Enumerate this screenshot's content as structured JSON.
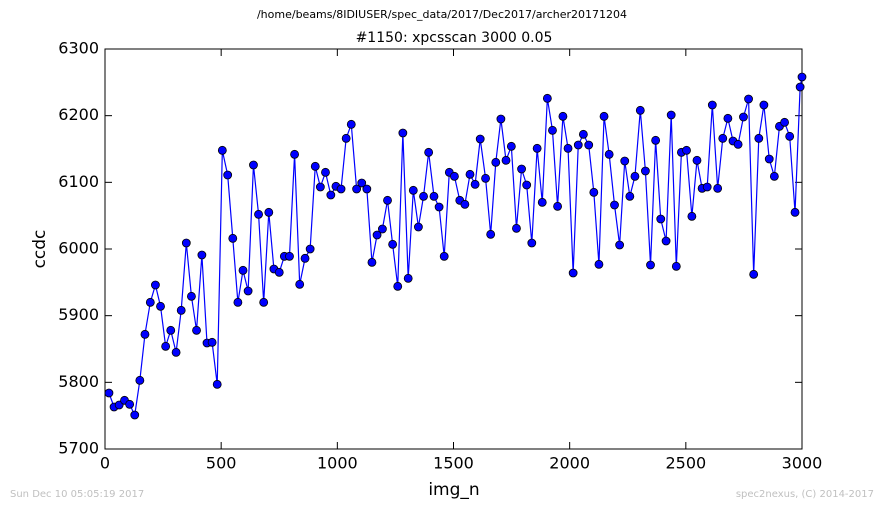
{
  "chart_data": {
    "type": "line",
    "suptitle": "/home/beams/8IDIUSER/spec_data/2017/Dec2017/archer20171204",
    "title": "#1150: xpcsscan 3000 0.05",
    "xlabel": "img_n",
    "ylabel": "ccdc",
    "footer_left": "Sun Dec 10 05:05:19 2017",
    "footer_right": "spec2nexus, (C) 2014-2017",
    "xlim": [
      0,
      3000
    ],
    "xticks": [
      0,
      500,
      1000,
      1500,
      2000,
      2500,
      3000
    ],
    "ylim": [
      5700,
      6300
    ],
    "yticks": [
      5700,
      5800,
      5900,
      6000,
      6100,
      6200,
      6300
    ],
    "grid": false,
    "x": [
      17,
      39,
      61,
      84,
      106,
      128,
      150,
      172,
      195,
      217,
      239,
      261,
      283,
      306,
      328,
      350,
      372,
      394,
      417,
      439,
      461,
      483,
      505,
      528,
      550,
      572,
      594,
      616,
      639,
      661,
      683,
      705,
      727,
      750,
      772,
      794,
      816,
      838,
      861,
      883,
      905,
      927,
      949,
      972,
      994,
      1016,
      1038,
      1060,
      1083,
      1105,
      1127,
      1149,
      1171,
      1194,
      1216,
      1238,
      1260,
      1282,
      1305,
      1327,
      1349,
      1371,
      1393,
      1416,
      1438,
      1460,
      1482,
      1504,
      1527,
      1549,
      1571,
      1593,
      1615,
      1638,
      1660,
      1682,
      1704,
      1726,
      1749,
      1771,
      1793,
      1815,
      1837,
      1860,
      1882,
      1904,
      1926,
      1948,
      1971,
      1993,
      2015,
      2037,
      2059,
      2082,
      2104,
      2126,
      2148,
      2170,
      2193,
      2215,
      2237,
      2259,
      2281,
      2304,
      2326,
      2348,
      2370,
      2392,
      2415,
      2437,
      2459,
      2481,
      2503,
      2526,
      2548,
      2570,
      2592,
      2614,
      2637,
      2659,
      2681,
      2703,
      2725,
      2748,
      2770,
      2792,
      2814,
      2836,
      2859,
      2881,
      2903,
      2925,
      2947,
      2970,
      2992,
      3000
    ],
    "series": [
      {
        "color": "#0000ff",
        "values": [
          5784,
          5763,
          5766,
          5773,
          5767,
          5751,
          5803,
          5872,
          5920,
          5946,
          5914,
          5854,
          5878,
          5845,
          5908,
          6009,
          5929,
          5878,
          5991,
          5859,
          5860,
          5797,
          6148,
          6111,
          6016,
          5920,
          5968,
          5937,
          6126,
          6052,
          5920,
          6055,
          5970,
          5965,
          5989,
          5989,
          6142,
          5947,
          5986,
          6000,
          6124,
          6093,
          6115,
          6081,
          6094,
          6090,
          6166,
          6187,
          6090,
          6099,
          6090,
          5980,
          6021,
          6030,
          6073,
          6007,
          5944,
          6174,
          5956,
          6088,
          6033,
          6079,
          6145,
          6079,
          6063,
          5989,
          6115,
          6109,
          6073,
          6067,
          6112,
          6097,
          6165,
          6106,
          6022,
          6130,
          6195,
          6133,
          6154,
          6031,
          6120,
          6096,
          6009,
          6151,
          6070,
          6226,
          6178,
          6064,
          6199,
          6151,
          5964,
          6156,
          6172,
          6156,
          6085,
          5977,
          6199,
          6142,
          6066,
          6006,
          6132,
          6079,
          6109,
          6208,
          6117,
          5976,
          6163,
          6045,
          6012,
          6201,
          5974,
          6145,
          6148,
          6049,
          6133,
          6091,
          6093,
          6216,
          6091,
          6166,
          6196,
          6162,
          6157,
          6198,
          6225,
          5962,
          6166,
          6216,
          6135,
          6109,
          6184,
          6190,
          6169,
          6055,
          6243,
          6258
        ]
      }
    ]
  }
}
